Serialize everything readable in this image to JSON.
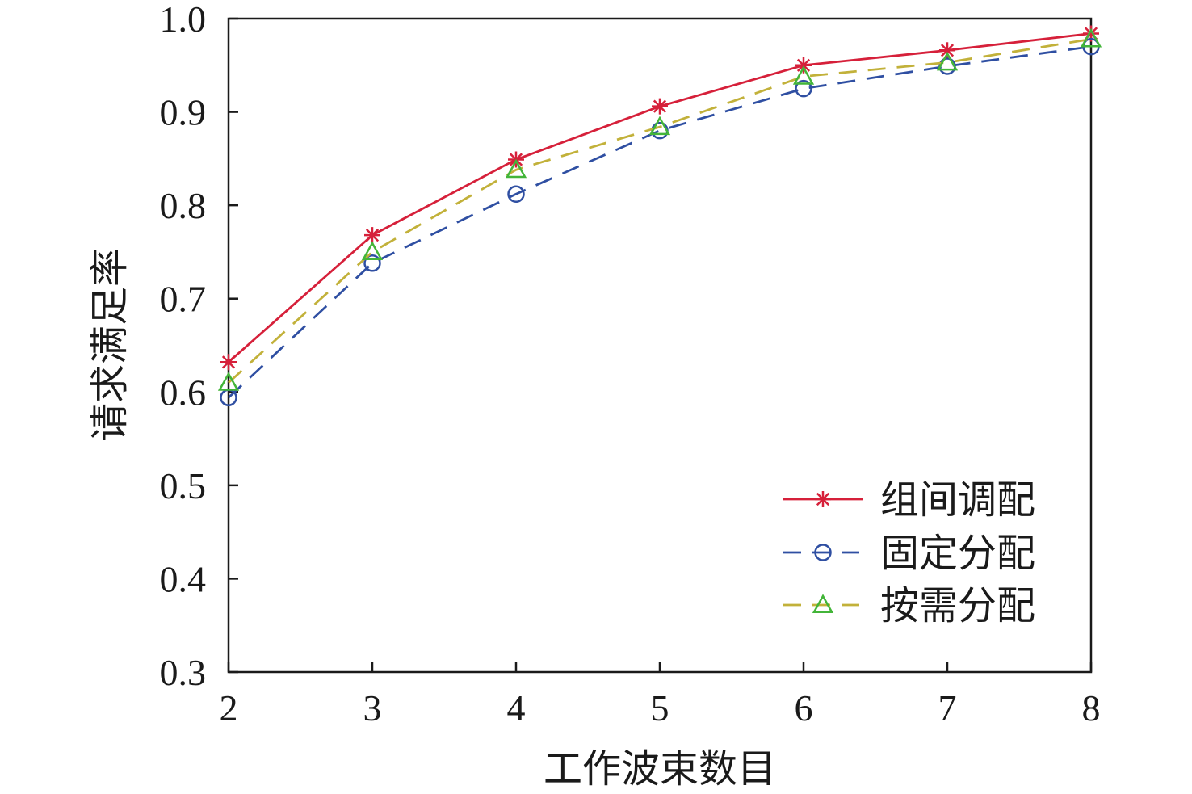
{
  "chart_data": {
    "type": "line",
    "xlabel": "工作波束数目",
    "ylabel": "请求满足率",
    "x": [
      2,
      3,
      4,
      5,
      6,
      7,
      8
    ],
    "xlim": [
      2,
      8
    ],
    "ylim": [
      0.3,
      1.0
    ],
    "xticks": [
      "2",
      "3",
      "4",
      "5",
      "6",
      "7",
      "8"
    ],
    "yticks": [
      "0.3",
      "0.4",
      "0.5",
      "0.6",
      "0.7",
      "0.8",
      "0.9",
      "1.0"
    ],
    "grid": false,
    "legend_position": "lower-right",
    "series": [
      {
        "name": "组间调配",
        "values": [
          0.632,
          0.768,
          0.849,
          0.906,
          0.95,
          0.966,
          0.984
        ],
        "color": "#d6203a",
        "line_style": "solid",
        "marker": "asterisk"
      },
      {
        "name": "固定分配",
        "values": [
          0.594,
          0.738,
          0.812,
          0.88,
          0.925,
          0.949,
          0.97
        ],
        "color": "#2f4fa2",
        "marker_color": "#2f4fa2",
        "line_style": "dashed",
        "marker": "circle"
      },
      {
        "name": "按需分配",
        "values": [
          0.61,
          0.75,
          0.838,
          0.884,
          0.938,
          0.953,
          0.978
        ],
        "color": "#c2b13a",
        "marker_color": "#43b539",
        "line_style": "dashed",
        "marker": "triangle"
      }
    ]
  }
}
